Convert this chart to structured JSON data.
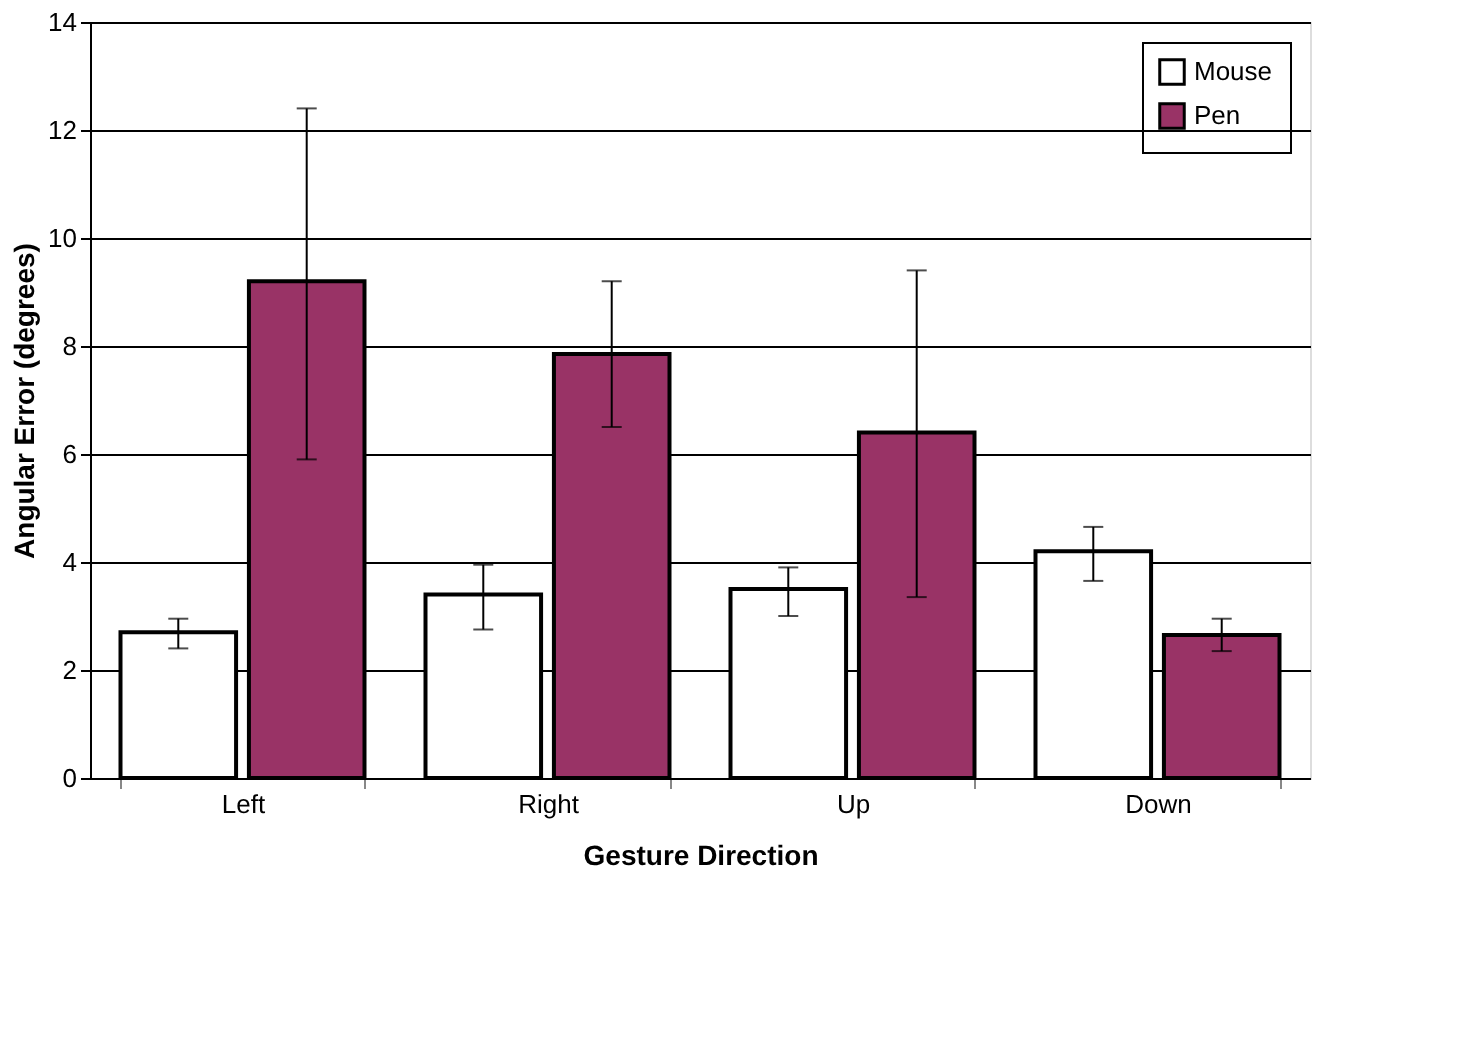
{
  "chart_data": {
    "type": "bar",
    "xlabel": "Gesture Direction",
    "ylabel": "Angular Error (degrees)",
    "categories": [
      "Left",
      "Right",
      "Up",
      "Down"
    ],
    "series": [
      {
        "name": "Mouse",
        "color": "#ffffff",
        "values": [
          2.7,
          3.4,
          3.5,
          4.2
        ],
        "errors": [
          [
            2.4,
            2.95
          ],
          [
            2.75,
            3.95
          ],
          [
            3.0,
            3.9
          ],
          [
            3.65,
            4.65
          ]
        ]
      },
      {
        "name": "Pen",
        "color": "#993366",
        "values": [
          9.2,
          7.85,
          6.4,
          2.65
        ],
        "errors": [
          [
            5.9,
            12.4
          ],
          [
            6.5,
            9.2
          ],
          [
            3.35,
            9.4
          ],
          [
            2.35,
            2.95
          ]
        ]
      }
    ],
    "ylim": [
      0,
      14
    ],
    "yticks": [
      0,
      2,
      4,
      6,
      8,
      10,
      12,
      14
    ],
    "grid": "y",
    "legend": "top right"
  }
}
